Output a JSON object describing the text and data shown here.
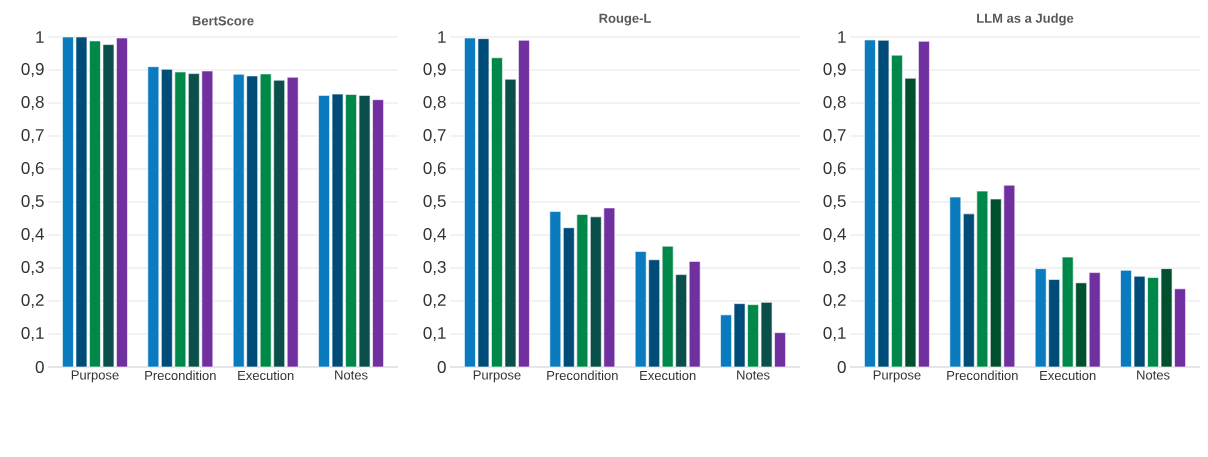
{
  "chart_data": [
    {
      "type": "bar",
      "title": "BertScore",
      "categories": [
        "Purpose",
        "Precondition",
        "Execution",
        "Notes"
      ],
      "grid": "y",
      "ylim": [
        0,
        1
      ],
      "yticks": [
        0,
        {
          "value": 0.1,
          "label": "0,1"
        },
        {
          "value": 0.2,
          "label": "0,2"
        },
        {
          "value": 0.3,
          "label": "0,3"
        },
        {
          "value": 0.4,
          "label": "0,4"
        },
        {
          "value": 0.5,
          "label": "0,5"
        },
        {
          "value": 0.6,
          "label": "0,6"
        },
        {
          "value": 0.7,
          "label": "0,7"
        },
        {
          "value": 0.8,
          "label": "0,8"
        },
        {
          "value": 0.9,
          "label": "0,9"
        },
        1
      ],
      "series": [
        {
          "color": "#0a7bbf",
          "values": [
            1.0,
            0.91,
            0.887,
            0.823
          ]
        },
        {
          "color": "#004c79",
          "values": [
            1.0,
            0.902,
            0.882,
            0.827
          ]
        },
        {
          "color": "#00874a",
          "values": [
            0.988,
            0.894,
            0.888,
            0.826
          ]
        },
        {
          "color": "#0b4f4a",
          "values": [
            0.977,
            0.889,
            0.869,
            0.823
          ]
        },
        {
          "color": "#7030a0",
          "values": [
            0.997,
            0.897,
            0.878,
            0.81
          ]
        }
      ]
    },
    {
      "type": "bar",
      "title": "Rouge-L",
      "categories": [
        "Purpose",
        "Precondition",
        "Execution",
        "Notes"
      ],
      "grid": "y",
      "ylim": [
        0,
        1
      ],
      "yticks": [
        0,
        {
          "value": 0.1,
          "label": "0,1"
        },
        {
          "value": 0.2,
          "label": "0,2"
        },
        {
          "value": 0.3,
          "label": "0,3"
        },
        {
          "value": 0.4,
          "label": "0,4"
        },
        {
          "value": 0.5,
          "label": "0,5"
        },
        {
          "value": 0.6,
          "label": "0,6"
        },
        {
          "value": 0.7,
          "label": "0,7"
        },
        {
          "value": 0.8,
          "label": "0,8"
        },
        {
          "value": 0.9,
          "label": "0,9"
        },
        1
      ],
      "series": [
        {
          "color": "#0a7bbf",
          "values": [
            0.997,
            0.471,
            0.35,
            0.158
          ]
        },
        {
          "color": "#004c79",
          "values": [
            0.995,
            0.422,
            0.325,
            0.192
          ]
        },
        {
          "color": "#00874a",
          "values": [
            0.937,
            0.462,
            0.366,
            0.189
          ]
        },
        {
          "color": "#0b4f4a",
          "values": [
            0.872,
            0.455,
            0.28,
            0.196
          ]
        },
        {
          "color": "#7030a0",
          "values": [
            0.99,
            0.482,
            0.32,
            0.104
          ]
        }
      ]
    },
    {
      "type": "bar",
      "title": "LLM as a Judge",
      "categories": [
        "Purpose",
        "Precondition",
        "Execution",
        "Notes"
      ],
      "grid": "y",
      "ylim": [
        0,
        1
      ],
      "yticks": [
        0,
        {
          "value": 0.1,
          "label": "0,1"
        },
        {
          "value": 0.2,
          "label": "0,2"
        },
        {
          "value": 0.3,
          "label": "0,3"
        },
        {
          "value": 0.4,
          "label": "0,4"
        },
        {
          "value": 0.5,
          "label": "0,5"
        },
        {
          "value": 0.6,
          "label": "0,6"
        },
        {
          "value": 0.7,
          "label": "0,7"
        },
        {
          "value": 0.8,
          "label": "0,8"
        },
        {
          "value": 0.9,
          "label": "0,9"
        },
        1
      ],
      "series": [
        {
          "color": "#0a7bbf",
          "values": [
            0.991,
            0.515,
            0.298,
            0.293
          ]
        },
        {
          "color": "#004c79",
          "values": [
            0.99,
            0.464,
            0.265,
            0.275
          ]
        },
        {
          "color": "#00874a",
          "values": [
            0.945,
            0.533,
            0.333,
            0.271
          ]
        },
        {
          "color": "#005030",
          "values": [
            0.875,
            0.509,
            0.255,
            0.298
          ]
        },
        {
          "color": "#7030a0",
          "values": [
            0.987,
            0.551,
            0.286,
            0.237
          ]
        }
      ]
    }
  ]
}
